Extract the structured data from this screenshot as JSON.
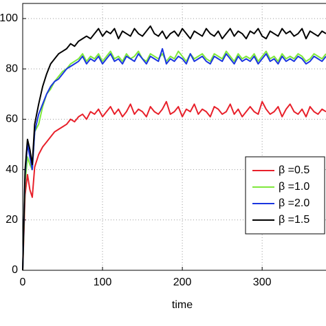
{
  "chart_data": {
    "type": "line",
    "xlabel": "time",
    "x": [
      0,
      3,
      6,
      9,
      12,
      15,
      20,
      25,
      30,
      35,
      40,
      45,
      50,
      55,
      60,
      65,
      70,
      75,
      80,
      85,
      90,
      95,
      100,
      105,
      110,
      115,
      120,
      125,
      130,
      135,
      140,
      145,
      150,
      155,
      160,
      165,
      170,
      175,
      180,
      185,
      190,
      195,
      200,
      205,
      210,
      215,
      220,
      225,
      230,
      235,
      240,
      245,
      250,
      255,
      260,
      265,
      270,
      275,
      280,
      285,
      290,
      295,
      300,
      305,
      310,
      315,
      320,
      325,
      330,
      335,
      340,
      345,
      350,
      355,
      360,
      365,
      370,
      375,
      380
    ],
    "series": [
      {
        "name": "β =0.5",
        "color": "#e8202a",
        "values": [
          0,
          30,
          38,
          32,
          29,
          41,
          46,
          49,
          51,
          53,
          55,
          56,
          57,
          58,
          60,
          59,
          61,
          62,
          60,
          63,
          62,
          64,
          61,
          63,
          65,
          62,
          64,
          61,
          63,
          66,
          62,
          64,
          63,
          61,
          65,
          63,
          62,
          64,
          67,
          62,
          63,
          65,
          61,
          64,
          63,
          66,
          62,
          64,
          63,
          61,
          65,
          64,
          62,
          63,
          66,
          62,
          64,
          61,
          63,
          65,
          63,
          62,
          67,
          64,
          62,
          63,
          65,
          61,
          64,
          66,
          63,
          62,
          64,
          61,
          65,
          63,
          62,
          64,
          63
        ]
      },
      {
        "name": "β =1.0",
        "color": "#7ee83a",
        "values": [
          0,
          35,
          45,
          42,
          40,
          55,
          58,
          65,
          70,
          72,
          75,
          77,
          79,
          80,
          82,
          83,
          84,
          86,
          83,
          85,
          84,
          86,
          83,
          85,
          87,
          84,
          85,
          83,
          86,
          84,
          85,
          87,
          84,
          83,
          86,
          85,
          84,
          86,
          83,
          85,
          84,
          87,
          85,
          83,
          86,
          84,
          85,
          86,
          84,
          83,
          86,
          85,
          84,
          87,
          85,
          83,
          86,
          84,
          85,
          84,
          86,
          83,
          85,
          87,
          84,
          85,
          83,
          86,
          84,
          85,
          84,
          86,
          85,
          83,
          84,
          86,
          85,
          84,
          86
        ]
      },
      {
        "name": "β =2.0",
        "color": "#1a35e0",
        "values": [
          0,
          38,
          50,
          45,
          40,
          55,
          62,
          66,
          70,
          73,
          75,
          76,
          78,
          80,
          81,
          82,
          83,
          85,
          82,
          84,
          83,
          85,
          82,
          84,
          86,
          83,
          84,
          82,
          85,
          84,
          83,
          86,
          84,
          82,
          85,
          84,
          83,
          88,
          82,
          84,
          83,
          85,
          84,
          82,
          86,
          83,
          84,
          85,
          83,
          82,
          85,
          84,
          83,
          86,
          84,
          82,
          85,
          83,
          84,
          83,
          85,
          82,
          84,
          86,
          83,
          84,
          82,
          85,
          83,
          84,
          83,
          85,
          84,
          82,
          83,
          85,
          84,
          83,
          85
        ]
      },
      {
        "name": "β =1.5",
        "color": "#000000",
        "values": [
          0,
          40,
          52,
          48,
          42,
          58,
          66,
          73,
          78,
          82,
          84,
          86,
          87,
          88,
          90,
          89,
          91,
          92,
          93,
          92,
          94,
          96,
          93,
          95,
          94,
          96,
          92,
          95,
          94,
          93,
          96,
          94,
          93,
          95,
          97,
          94,
          93,
          95,
          92,
          94,
          95,
          93,
          96,
          94,
          92,
          95,
          94,
          93,
          96,
          94,
          93,
          95,
          92,
          94,
          96,
          93,
          95,
          94,
          92,
          95,
          94,
          96,
          93,
          92,
          95,
          94,
          93,
          96,
          94,
          95,
          93,
          94,
          96,
          92,
          95,
          94,
          93,
          95,
          94
        ]
      }
    ],
    "xlim": [
      0,
      380
    ],
    "xticks": [
      0,
      100,
      200,
      300
    ],
    "ylim": [
      0,
      106
    ],
    "yticks": [
      0,
      20,
      40,
      60,
      80,
      100
    ],
    "grid": true,
    "legend": "lower right"
  }
}
